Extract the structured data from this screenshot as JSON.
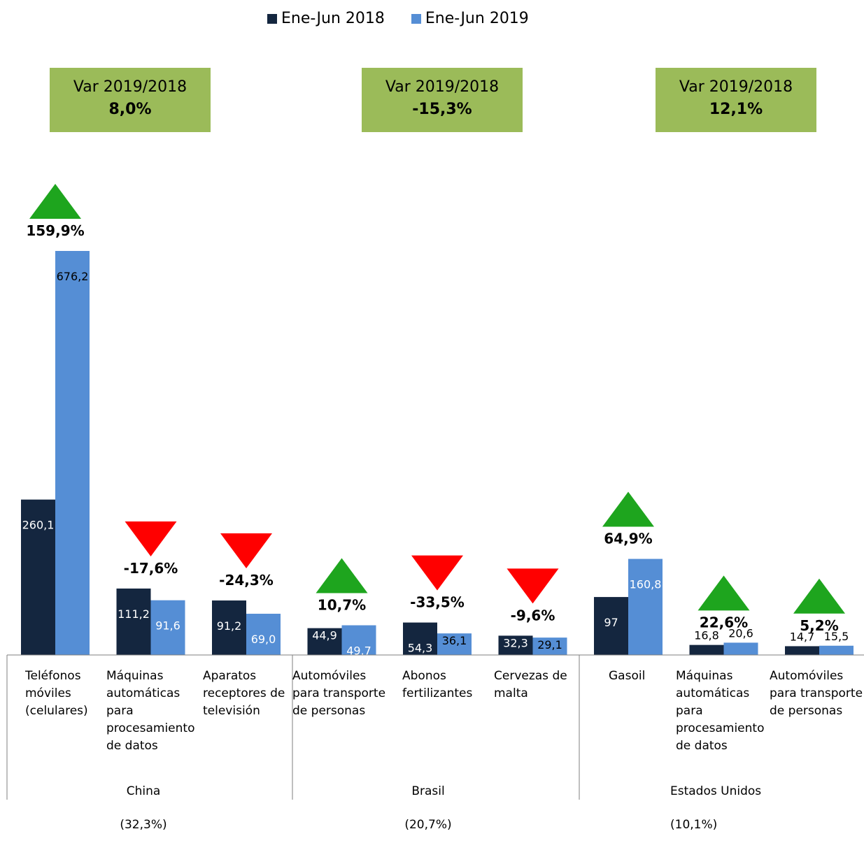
{
  "legend": [
    {
      "label": "Ene-Jun 2018",
      "color": "#14263f"
    },
    {
      "label": "Ene-Jun 2019",
      "color": "#558ed5"
    }
  ],
  "variation_boxes": [
    {
      "title": "Var 2019/2018",
      "value": "8,0%"
    },
    {
      "title": "Var 2019/2018",
      "value": "-15,3%"
    },
    {
      "title": "Var 2019/2018",
      "value": "12,1%"
    }
  ],
  "groups": [
    {
      "name": "China",
      "share": "(32,3%)"
    },
    {
      "name": "Brasil",
      "share": "(20,7%)"
    },
    {
      "name": "Estados Unidos",
      "share": "(10,1%)"
    }
  ],
  "chart_data": {
    "type": "bar",
    "categories": [
      "Teléfonos\nmóviles\n(celulares)",
      "Máquinas\nautomáticas\npara\nprocesamiento\nde datos",
      "Aparatos\nreceptores de\ntelevisión",
      "Automóviles\npara transporte\nde personas",
      "Abonos\nfertilizantes",
      "Cervezas de\nmalta",
      "Gasoil",
      "Máquinas\nautomáticas\npara\nprocesamiento\nde datos",
      "Automóviles\npara transporte\nde personas"
    ],
    "series": [
      {
        "name": "Ene-Jun 2018",
        "values": [
          260.1,
          111.2,
          91.2,
          44.9,
          54.3,
          32.3,
          97,
          16.8,
          14.7
        ],
        "labels": [
          "260,1",
          "111,2",
          "91,2",
          "44,9",
          "54,3",
          "32,3",
          "97",
          "16,8",
          "14,7"
        ]
      },
      {
        "name": "Ene-Jun 2019",
        "values": [
          676.2,
          91.6,
          69.0,
          49.7,
          36.1,
          29.1,
          160.8,
          20.6,
          15.5
        ],
        "labels": [
          "676,2",
          "91,6",
          "69,0",
          "49,7",
          "36,1",
          "29,1",
          "160,8",
          "20,6",
          "15,5"
        ]
      }
    ],
    "changes": [
      {
        "label": "159,9%",
        "direction": "up"
      },
      {
        "label": "-17,6%",
        "direction": "down"
      },
      {
        "label": "-24,3%",
        "direction": "down"
      },
      {
        "label": "10,7%",
        "direction": "up"
      },
      {
        "label": "-33,5%",
        "direction": "down"
      },
      {
        "label": "-9,6%",
        "direction": "down"
      },
      {
        "label": "64,9%",
        "direction": "up"
      },
      {
        "label": "22,6%",
        "direction": "up"
      },
      {
        "label": "5,2%",
        "direction": "up"
      }
    ],
    "ylim": [
      0,
      700
    ],
    "colors": {
      "up": "#1ea51e",
      "down": "#ff0000",
      "box": "#9bbb59"
    }
  }
}
